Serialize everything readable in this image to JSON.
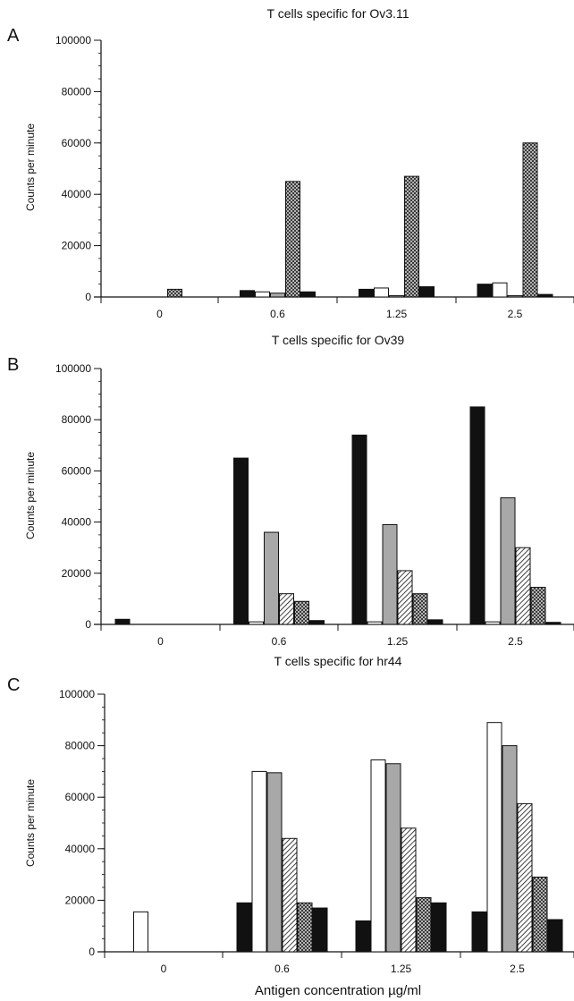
{
  "panels": [
    {
      "letter": "A"
    },
    {
      "letter": "B"
    },
    {
      "letter": "C"
    }
  ],
  "xlabel": "Antigen concentration µg/ml",
  "ylabel": "Counts per minute",
  "colors": {
    "black": "#111111",
    "white": "#ffffff",
    "gray": "#a8a8a8"
  },
  "chart_data": [
    {
      "type": "bar",
      "title": "T cells specific for Ov3.11",
      "ylabel": "Counts per minute",
      "xlabel": "",
      "categories": [
        "0",
        "0.6",
        "1.25",
        "2.5"
      ],
      "ylim": [
        0,
        100000
      ],
      "yticks": [
        0,
        20000,
        40000,
        60000,
        80000,
        100000
      ],
      "series": [
        {
          "fill": "solid",
          "values": [
            0,
            2500,
            3000,
            5000
          ]
        },
        {
          "fill": "white",
          "values": [
            0,
            2000,
            3500,
            5500
          ]
        },
        {
          "fill": "gray",
          "values": [
            0,
            1500,
            500,
            500
          ]
        },
        {
          "fill": "crosshatch",
          "values": [
            3000,
            45000,
            47000,
            60000
          ]
        },
        {
          "fill": "solid",
          "values": [
            0,
            2000,
            4000,
            1000
          ]
        }
      ]
    },
    {
      "type": "bar",
      "title": "T cells specific for Ov39",
      "ylabel": "Counts per minute",
      "xlabel": "",
      "categories": [
        "0",
        "0.6",
        "1.25",
        "2.5"
      ],
      "ylim": [
        0,
        100000
      ],
      "yticks": [
        0,
        20000,
        40000,
        60000,
        80000,
        100000
      ],
      "series": [
        {
          "fill": "solid",
          "values": [
            2000,
            65000,
            74000,
            85000
          ]
        },
        {
          "fill": "white",
          "values": [
            0,
            1000,
            1000,
            1000
          ]
        },
        {
          "fill": "gray",
          "values": [
            0,
            36000,
            39000,
            49500
          ]
        },
        {
          "fill": "diagonal",
          "values": [
            0,
            12000,
            21000,
            30000
          ]
        },
        {
          "fill": "crosshatch",
          "values": [
            0,
            9000,
            12000,
            14500
          ]
        },
        {
          "fill": "solid",
          "values": [
            0,
            1500,
            1800,
            800
          ]
        }
      ]
    },
    {
      "type": "bar",
      "title": "T cells specific for hr44",
      "ylabel": "Counts per minute",
      "xlabel": "Antigen concentration µg/ml",
      "categories": [
        "0",
        "0.6",
        "1.25",
        "2.5"
      ],
      "ylim": [
        0,
        100000
      ],
      "yticks": [
        0,
        20000,
        40000,
        60000,
        80000,
        100000
      ],
      "series": [
        {
          "fill": "solid",
          "values": [
            0,
            19000,
            12000,
            15500
          ]
        },
        {
          "fill": "white",
          "values": [
            15500,
            70000,
            74500,
            89000
          ]
        },
        {
          "fill": "gray",
          "values": [
            0,
            69500,
            73000,
            80000
          ]
        },
        {
          "fill": "diagonal",
          "values": [
            0,
            44000,
            48000,
            57500
          ]
        },
        {
          "fill": "crosshatch",
          "values": [
            0,
            19000,
            21000,
            29000
          ]
        },
        {
          "fill": "solid",
          "values": [
            0,
            17000,
            19000,
            12500
          ]
        }
      ]
    }
  ]
}
